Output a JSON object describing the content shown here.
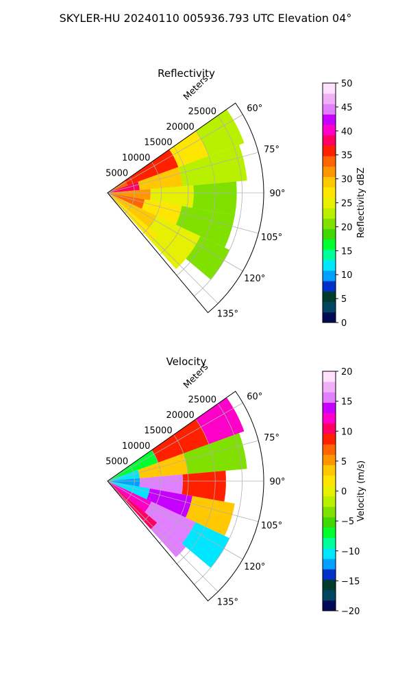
{
  "figure": {
    "suptitle": "SKYLER-HU  20240110  005936.793 UTC Elevation 04°"
  },
  "chart_data": [
    {
      "type": "heatmap",
      "subtype": "polar-sector",
      "title": "Reflectivity",
      "radial_label": "Meters",
      "radial_ticks": [
        "5000",
        "10000",
        "15000",
        "20000",
        "25000"
      ],
      "radial_tick_values": [
        5000,
        10000,
        15000,
        20000,
        25000
      ],
      "rlim": [
        0,
        29000
      ],
      "angle_ticks": [
        "60°",
        "75°",
        "90°",
        "105°",
        "120°",
        "135°"
      ],
      "angle_tick_values": [
        60,
        75,
        90,
        105,
        120,
        135
      ],
      "theta_range": [
        55,
        140
      ],
      "grid": true,
      "colorbar": {
        "label": "Reflectivity dBZ",
        "range": [
          0,
          50
        ],
        "ticks": [
          "0",
          "5",
          "10",
          "15",
          "20",
          "25",
          "30",
          "35",
          "40",
          "45",
          "50"
        ],
        "tick_values": [
          0,
          5,
          10,
          15,
          20,
          25,
          30,
          35,
          40,
          45,
          50
        ],
        "colors": [
          "#000a55",
          "#004660",
          "#003a2a",
          "#0030c8",
          "#00a0ff",
          "#00e6ff",
          "#00ff9a",
          "#00ff30",
          "#40d800",
          "#80e000",
          "#b8f000",
          "#e6f000",
          "#ffe600",
          "#ffc800",
          "#ff9600",
          "#ff6400",
          "#ff2000",
          "#ff0060",
          "#ff00c8",
          "#c800ff",
          "#e080ff",
          "#f0b0f8",
          "#ffe0ff"
        ]
      },
      "field": [
        {
          "a_min": 55,
          "a_max": 70,
          "r_min": 0,
          "r_max": 4000,
          "value": 34
        },
        {
          "a_min": 55,
          "a_max": 70,
          "r_min": 4000,
          "r_max": 14000,
          "value": 36
        },
        {
          "a_min": 55,
          "a_max": 70,
          "r_min": 14000,
          "r_max": 20000,
          "value": 28
        },
        {
          "a_min": 55,
          "a_max": 70,
          "r_min": 20000,
          "r_max": 27000,
          "value": 22
        },
        {
          "a_min": 70,
          "a_max": 85,
          "r_min": 0,
          "r_max": 6000,
          "value": 38
        },
        {
          "a_min": 70,
          "a_max": 85,
          "r_min": 6000,
          "r_max": 14000,
          "value": 30
        },
        {
          "a_min": 70,
          "a_max": 85,
          "r_min": 14000,
          "r_max": 26000,
          "value": 22
        },
        {
          "a_min": 85,
          "a_max": 100,
          "r_min": 0,
          "r_max": 8000,
          "value": 32
        },
        {
          "a_min": 85,
          "a_max": 100,
          "r_min": 8000,
          "r_max": 16000,
          "value": 26
        },
        {
          "a_min": 85,
          "a_max": 100,
          "r_min": 16000,
          "r_max": 24000,
          "value": 20
        },
        {
          "a_min": 100,
          "a_max": 115,
          "r_min": 0,
          "r_max": 7000,
          "value": 34
        },
        {
          "a_min": 100,
          "a_max": 115,
          "r_min": 7000,
          "r_max": 14000,
          "value": 27
        },
        {
          "a_min": 100,
          "a_max": 115,
          "r_min": 14000,
          "r_max": 24000,
          "value": 20
        },
        {
          "a_min": 115,
          "a_max": 130,
          "r_min": 0,
          "r_max": 10000,
          "value": 30
        },
        {
          "a_min": 115,
          "a_max": 130,
          "r_min": 10000,
          "r_max": 19000,
          "value": 26
        },
        {
          "a_min": 115,
          "a_max": 130,
          "r_min": 19000,
          "r_max": 25000,
          "value": 21
        },
        {
          "a_min": 130,
          "a_max": 138,
          "r_min": 0,
          "r_max": 12000,
          "value": 28
        },
        {
          "a_min": 130,
          "a_max": 138,
          "r_min": 12000,
          "r_max": 19000,
          "value": 24
        }
      ]
    },
    {
      "type": "heatmap",
      "subtype": "polar-sector",
      "title": "Velocity",
      "radial_label": "Meters",
      "radial_ticks": [
        "5000",
        "10000",
        "15000",
        "20000",
        "25000"
      ],
      "radial_tick_values": [
        5000,
        10000,
        15000,
        20000,
        25000
      ],
      "rlim": [
        0,
        29000
      ],
      "angle_ticks": [
        "60°",
        "75°",
        "90°",
        "105°",
        "120°",
        "135°"
      ],
      "angle_tick_values": [
        60,
        75,
        90,
        105,
        120,
        135
      ],
      "theta_range": [
        55,
        140
      ],
      "grid": true,
      "colorbar": {
        "label": "Velocity (m/s)",
        "range": [
          -20,
          20
        ],
        "ticks": [
          "−20",
          "−15",
          "−10",
          "−5",
          "0",
          "5",
          "10",
          "15",
          "20"
        ],
        "tick_values": [
          -20,
          -15,
          -10,
          -5,
          0,
          5,
          10,
          15,
          20
        ],
        "colors": [
          "#000a55",
          "#004660",
          "#003a2a",
          "#0030c8",
          "#00a0ff",
          "#00e6ff",
          "#00ff9a",
          "#00ff30",
          "#40d800",
          "#80e000",
          "#b8f000",
          "#e6f000",
          "#ffe600",
          "#ffc800",
          "#ff9600",
          "#ff6400",
          "#ff2000",
          "#ff0060",
          "#ff00c8",
          "#c800ff",
          "#e080ff",
          "#f0b0f8",
          "#ffe0ff"
        ]
      },
      "field": [
        {
          "a_min": 55,
          "a_max": 70,
          "r_min": 0,
          "r_max": 10000,
          "value": -7
        },
        {
          "a_min": 55,
          "a_max": 70,
          "r_min": 10000,
          "r_max": 20000,
          "value": 8
        },
        {
          "a_min": 55,
          "a_max": 70,
          "r_min": 20000,
          "r_max": 27000,
          "value": 12
        },
        {
          "a_min": 70,
          "a_max": 85,
          "r_min": 0,
          "r_max": 6000,
          "value": -10
        },
        {
          "a_min": 70,
          "a_max": 85,
          "r_min": 6000,
          "r_max": 15000,
          "value": 3
        },
        {
          "a_min": 70,
          "a_max": 85,
          "r_min": 15000,
          "r_max": 26000,
          "value": -3
        },
        {
          "a_min": 85,
          "a_max": 100,
          "r_min": 0,
          "r_max": 6000,
          "value": -12
        },
        {
          "a_min": 85,
          "a_max": 100,
          "r_min": 6000,
          "r_max": 14000,
          "value": 16
        },
        {
          "a_min": 85,
          "a_max": 100,
          "r_min": 14000,
          "r_max": 22000,
          "value": 9
        },
        {
          "a_min": 100,
          "a_max": 115,
          "r_min": 0,
          "r_max": 8000,
          "value": -11
        },
        {
          "a_min": 100,
          "a_max": 115,
          "r_min": 8000,
          "r_max": 16000,
          "value": 14
        },
        {
          "a_min": 100,
          "a_max": 115,
          "r_min": 16000,
          "r_max": 24000,
          "value": 3
        },
        {
          "a_min": 115,
          "a_max": 130,
          "r_min": 0,
          "r_max": 9000,
          "value": 12
        },
        {
          "a_min": 115,
          "a_max": 130,
          "r_min": 9000,
          "r_max": 18000,
          "value": 15
        },
        {
          "a_min": 115,
          "a_max": 130,
          "r_min": 18000,
          "r_max": 25000,
          "value": -10
        },
        {
          "a_min": 130,
          "a_max": 138,
          "r_min": 0,
          "r_max": 12000,
          "value": 11
        },
        {
          "a_min": 130,
          "a_max": 138,
          "r_min": 12000,
          "r_max": 19000,
          "value": 16
        }
      ]
    }
  ]
}
